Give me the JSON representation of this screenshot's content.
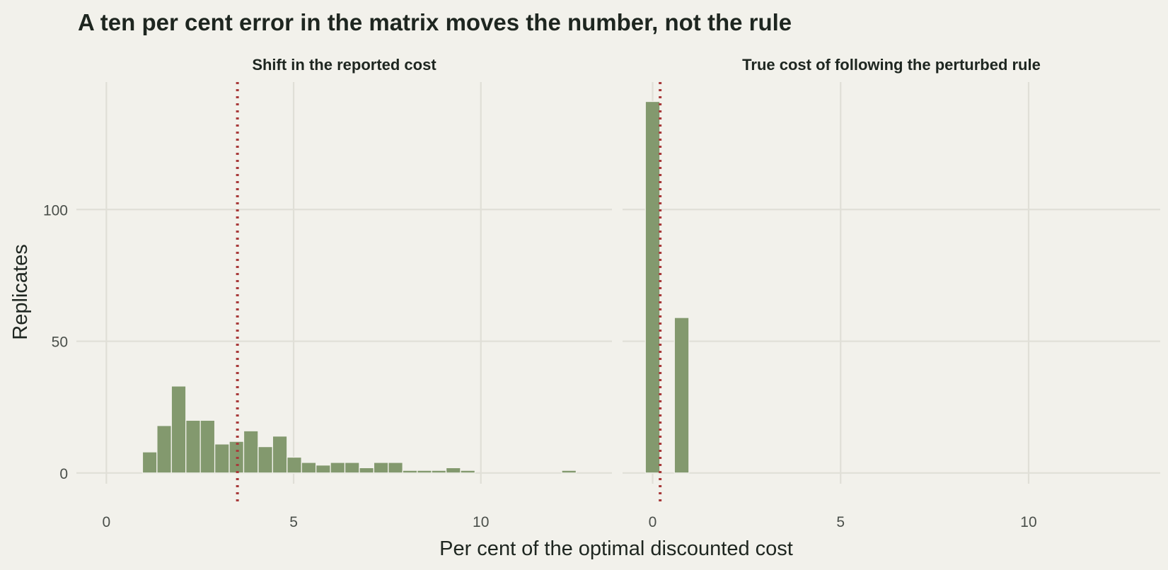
{
  "chart_data": {
    "type": "bar",
    "title": "A ten per cent error in the matrix moves the number, not the rule",
    "xlabel": "Per cent of the optimal discounted cost",
    "ylabel": "Replicates",
    "colors": {
      "background": "#f2f1eb",
      "grid": "#e0dfd7",
      "bar": "#83996e",
      "reference_line": "#a83a3a",
      "text": "#1e2620"
    },
    "grid": true,
    "shared_y_axis": true,
    "ylim": [
      -3,
      150
    ],
    "y_ticks": [
      0,
      50,
      100
    ],
    "y_tick_labels": [
      "0",
      "50",
      "100"
    ],
    "panels": [
      {
        "strip_title": "Shift in the reported cost",
        "xlim": [
          -0.8,
          13.5
        ],
        "x_ticks": [
          0,
          5,
          10
        ],
        "x_tick_labels": [
          "0",
          "5",
          "10"
        ],
        "bin_width": 0.386,
        "reference_line": 3.5,
        "bins": [
          {
            "x": 0.0,
            "count": 0
          },
          {
            "x": 0.386,
            "count": 0
          },
          {
            "x": 0.772,
            "count": 0
          },
          {
            "x": 1.158,
            "count": 8
          },
          {
            "x": 1.544,
            "count": 18
          },
          {
            "x": 1.93,
            "count": 33
          },
          {
            "x": 2.316,
            "count": 20
          },
          {
            "x": 2.702,
            "count": 20
          },
          {
            "x": 3.088,
            "count": 11
          },
          {
            "x": 3.474,
            "count": 12
          },
          {
            "x": 3.86,
            "count": 16
          },
          {
            "x": 4.246,
            "count": 10
          },
          {
            "x": 4.632,
            "count": 14
          },
          {
            "x": 5.018,
            "count": 6
          },
          {
            "x": 5.404,
            "count": 4
          },
          {
            "x": 5.79,
            "count": 3
          },
          {
            "x": 6.176,
            "count": 4
          },
          {
            "x": 6.562,
            "count": 4
          },
          {
            "x": 6.948,
            "count": 2
          },
          {
            "x": 7.334,
            "count": 4
          },
          {
            "x": 7.72,
            "count": 4
          },
          {
            "x": 8.106,
            "count": 1
          },
          {
            "x": 8.492,
            "count": 1
          },
          {
            "x": 8.878,
            "count": 1
          },
          {
            "x": 9.264,
            "count": 2
          },
          {
            "x": 9.65,
            "count": 1
          },
          {
            "x": 10.036,
            "count": 0
          },
          {
            "x": 10.422,
            "count": 0
          },
          {
            "x": 10.808,
            "count": 0
          },
          {
            "x": 11.194,
            "count": 0
          },
          {
            "x": 11.58,
            "count": 0
          },
          {
            "x": 11.966,
            "count": 0
          },
          {
            "x": 12.352,
            "count": 1
          },
          {
            "x": 12.738,
            "count": 0
          }
        ]
      },
      {
        "strip_title": "True cost of following the perturbed rule",
        "xlim": [
          -0.8,
          13.5
        ],
        "x_ticks": [
          0,
          5,
          10
        ],
        "x_tick_labels": [
          "0",
          "5",
          "10"
        ],
        "bin_width": 0.386,
        "reference_line": 0.2,
        "bins": [
          {
            "x": 0.0,
            "count": 141
          },
          {
            "x": 0.386,
            "count": 0
          },
          {
            "x": 0.772,
            "count": 59
          },
          {
            "x": 1.158,
            "count": 0
          },
          {
            "x": 1.544,
            "count": 0
          },
          {
            "x": 1.93,
            "count": 0
          },
          {
            "x": 2.316,
            "count": 0
          },
          {
            "x": 2.702,
            "count": 0
          },
          {
            "x": 3.088,
            "count": 0
          },
          {
            "x": 3.474,
            "count": 0
          },
          {
            "x": 3.86,
            "count": 0
          },
          {
            "x": 4.246,
            "count": 0
          },
          {
            "x": 4.632,
            "count": 0
          },
          {
            "x": 5.018,
            "count": 0
          },
          {
            "x": 5.404,
            "count": 0
          },
          {
            "x": 5.79,
            "count": 0
          },
          {
            "x": 6.176,
            "count": 0
          },
          {
            "x": 6.562,
            "count": 0
          },
          {
            "x": 6.948,
            "count": 0
          },
          {
            "x": 7.334,
            "count": 0
          },
          {
            "x": 7.72,
            "count": 0
          },
          {
            "x": 8.106,
            "count": 0
          },
          {
            "x": 8.492,
            "count": 0
          },
          {
            "x": 8.878,
            "count": 0
          },
          {
            "x": 9.264,
            "count": 0
          },
          {
            "x": 9.65,
            "count": 0
          },
          {
            "x": 10.036,
            "count": 0
          },
          {
            "x": 10.422,
            "count": 0
          },
          {
            "x": 10.808,
            "count": 0
          },
          {
            "x": 11.194,
            "count": 0
          },
          {
            "x": 11.58,
            "count": 0
          },
          {
            "x": 11.966,
            "count": 0
          },
          {
            "x": 12.352,
            "count": 0
          },
          {
            "x": 12.738,
            "count": 0
          }
        ]
      }
    ]
  }
}
